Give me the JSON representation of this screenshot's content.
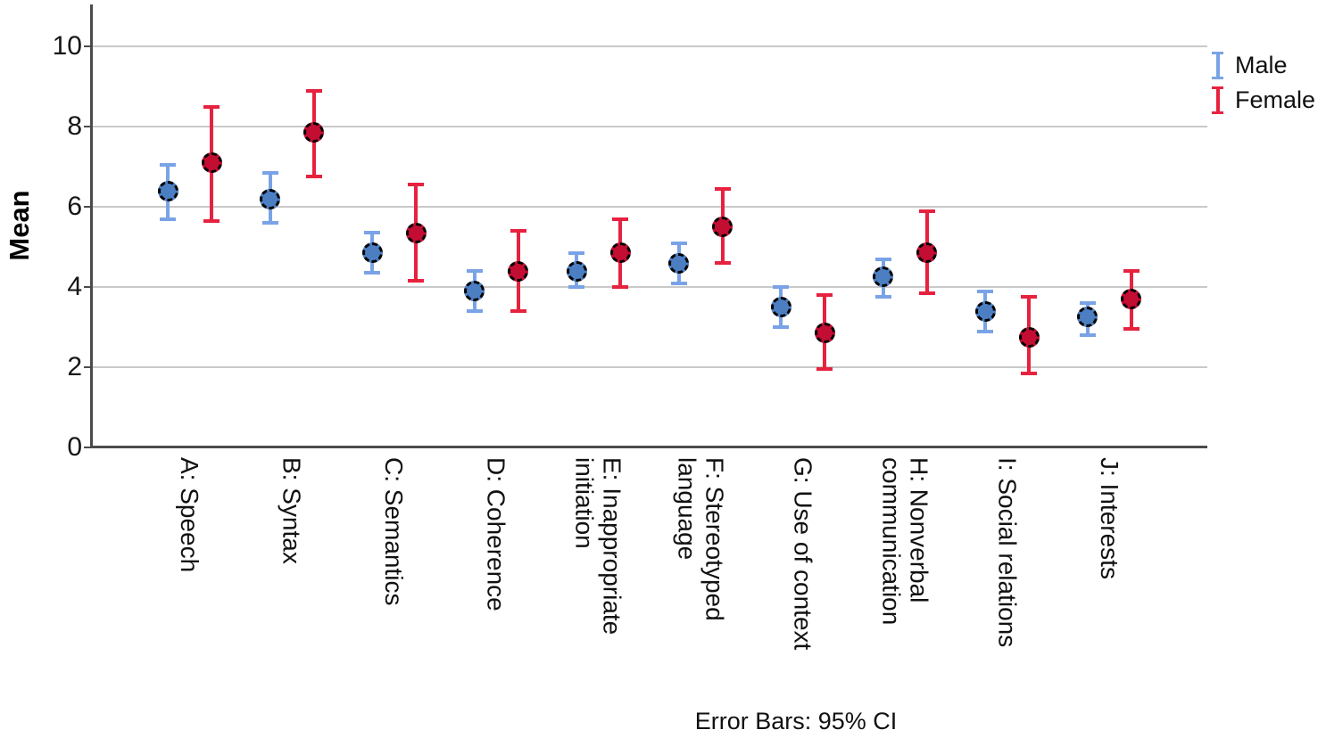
{
  "chart_data": {
    "type": "errorbar",
    "title": "",
    "ylabel": "Mean",
    "xlabel": "",
    "ylim": [
      0,
      10.9
    ],
    "yticks": [
      0,
      2,
      4,
      6,
      8,
      10
    ],
    "grid": "horizontal-at-ticks-except-zero",
    "legend_position": "top-right",
    "footnote": "Error Bars: 95% CI",
    "error_bar_type": "95% CI",
    "background_color": "#ffffff",
    "axis_color": "#4b4b4b",
    "grid_color": "#c9c9c9",
    "marker_outline": "#000000 dashed",
    "categories": [
      "A: Speech",
      "B: Syntax",
      "C: Semantics",
      "D: Coherence",
      "E: Inappropriate\ninitiation",
      "F: Stereotyped\nlanguage",
      "G: Use of context",
      "H: Nonverbal\ncommunication",
      "I: Social relations",
      "J: Interests"
    ],
    "series": [
      {
        "name": "Male",
        "line_color": "#79a3e6",
        "marker_color": "#4c7ec2",
        "means": [
          6.4,
          6.2,
          4.85,
          3.9,
          4.4,
          4.6,
          3.5,
          4.25,
          3.4,
          3.25
        ],
        "ci_low": [
          5.7,
          5.6,
          4.35,
          3.4,
          4.0,
          4.1,
          3.0,
          3.75,
          2.9,
          2.8
        ],
        "ci_high": [
          7.05,
          6.85,
          5.35,
          4.4,
          4.85,
          5.1,
          4.0,
          4.7,
          3.9,
          3.6
        ]
      },
      {
        "name": "Female",
        "line_color": "#e6223f",
        "marker_color": "#c30d33",
        "means": [
          7.1,
          7.85,
          5.35,
          4.4,
          4.85,
          5.5,
          2.85,
          4.85,
          2.75,
          3.7
        ],
        "ci_low": [
          5.65,
          6.75,
          4.15,
          3.4,
          4.0,
          4.6,
          1.95,
          3.85,
          1.85,
          2.95
        ],
        "ci_high": [
          8.5,
          8.9,
          6.55,
          5.4,
          5.7,
          6.45,
          3.8,
          5.9,
          3.75,
          4.4
        ]
      }
    ]
  }
}
